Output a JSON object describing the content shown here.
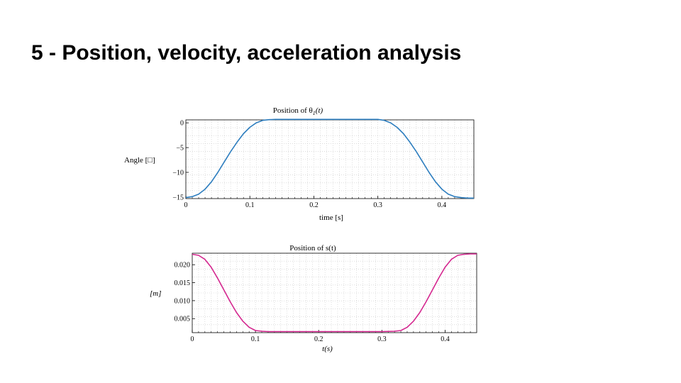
{
  "slide": {
    "title": "5 - Position, velocity, acceleration analysis"
  },
  "chart_data": [
    {
      "type": "line",
      "title": "Position of θ",
      "title_sub": "1",
      "title_tail": "(t)",
      "xlabel": "time [s]",
      "ylabel": "Angle [□]",
      "xlim": [
        0,
        0.45
      ],
      "ylim": [
        -15.3,
        0.6
      ],
      "xticks": [
        0,
        0.1,
        0.2,
        0.3,
        0.4
      ],
      "xtick_labels": [
        "0",
        "0.1",
        "0.2",
        "0.3",
        "0.4"
      ],
      "yticks": [
        0,
        -5,
        -10,
        -15
      ],
      "ytick_labels": [
        "0",
        "−5",
        "−10",
        "−15"
      ],
      "grid": true,
      "color": "#2e7ebf",
      "series": [
        {
          "x": [
            0,
            0.01,
            0.02,
            0.03,
            0.04,
            0.05,
            0.06,
            0.07,
            0.08,
            0.09,
            0.1,
            0.11,
            0.12,
            0.13,
            0.14,
            0.15,
            0.2,
            0.25,
            0.3,
            0.31,
            0.32,
            0.33,
            0.34,
            0.35,
            0.36,
            0.37,
            0.38,
            0.39,
            0.4,
            0.41,
            0.42,
            0.43,
            0.44,
            0.45
          ],
          "y": [
            -15.1,
            -14.9,
            -14.4,
            -13.4,
            -11.9,
            -10.0,
            -7.9,
            -5.8,
            -3.9,
            -2.2,
            -0.9,
            0.0,
            0.5,
            0.65,
            0.7,
            0.7,
            0.7,
            0.7,
            0.7,
            0.5,
            0.0,
            -0.9,
            -2.2,
            -3.9,
            -5.8,
            -7.9,
            -10.0,
            -11.9,
            -13.4,
            -14.4,
            -14.9,
            -15.1,
            -15.2,
            -15.2
          ]
        }
      ]
    },
    {
      "type": "line",
      "title": "Position of s(t)",
      "xlabel": "t(s)",
      "ylabel": "[m]",
      "xlim": [
        0,
        0.45
      ],
      "ylim": [
        0.0011,
        0.0232
      ],
      "xticks": [
        0,
        0.1,
        0.2,
        0.3,
        0.4
      ],
      "xtick_labels": [
        "0",
        "0.1",
        "0.2",
        "0.3",
        "0.4"
      ],
      "yticks": [
        0.02,
        0.015,
        0.01,
        0.005
      ],
      "ytick_labels": [
        "0.020",
        "0.015",
        "0.010",
        "0.005"
      ],
      "grid": true,
      "color": "#d4278f",
      "series": [
        {
          "x": [
            0,
            0.01,
            0.02,
            0.03,
            0.04,
            0.05,
            0.06,
            0.07,
            0.08,
            0.09,
            0.1,
            0.11,
            0.12,
            0.13,
            0.14,
            0.15,
            0.2,
            0.25,
            0.3,
            0.32,
            0.33,
            0.34,
            0.35,
            0.36,
            0.37,
            0.38,
            0.39,
            0.4,
            0.41,
            0.42,
            0.43,
            0.44,
            0.45
          ],
          "y": [
            0.0229,
            0.0226,
            0.0215,
            0.0193,
            0.0163,
            0.013,
            0.0097,
            0.0067,
            0.0043,
            0.0026,
            0.0017,
            0.0015,
            0.0014,
            0.0014,
            0.0014,
            0.0014,
            0.0014,
            0.0014,
            0.0014,
            0.0015,
            0.0017,
            0.0026,
            0.0043,
            0.0067,
            0.0097,
            0.013,
            0.0163,
            0.0193,
            0.0215,
            0.0226,
            0.0229,
            0.023,
            0.023
          ]
        }
      ]
    }
  ]
}
